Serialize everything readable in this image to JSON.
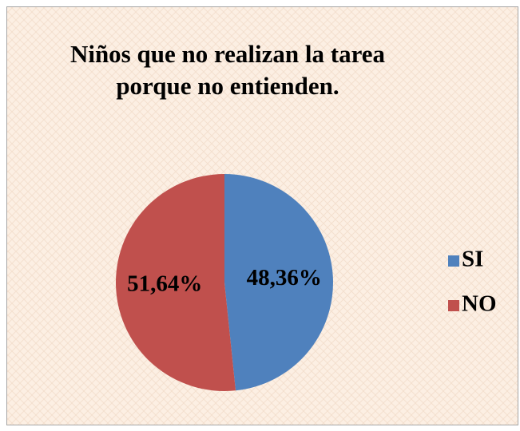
{
  "chart_data": {
    "type": "pie",
    "title": "Niños que no realizan la tarea porque no entienden.",
    "categories": [
      "SI",
      "NO"
    ],
    "values": [
      48.36,
      51.64
    ],
    "value_labels": [
      "48,36%",
      "51,64%"
    ],
    "colors": [
      "#4f81bd",
      "#c0504d"
    ],
    "legend": "right"
  }
}
